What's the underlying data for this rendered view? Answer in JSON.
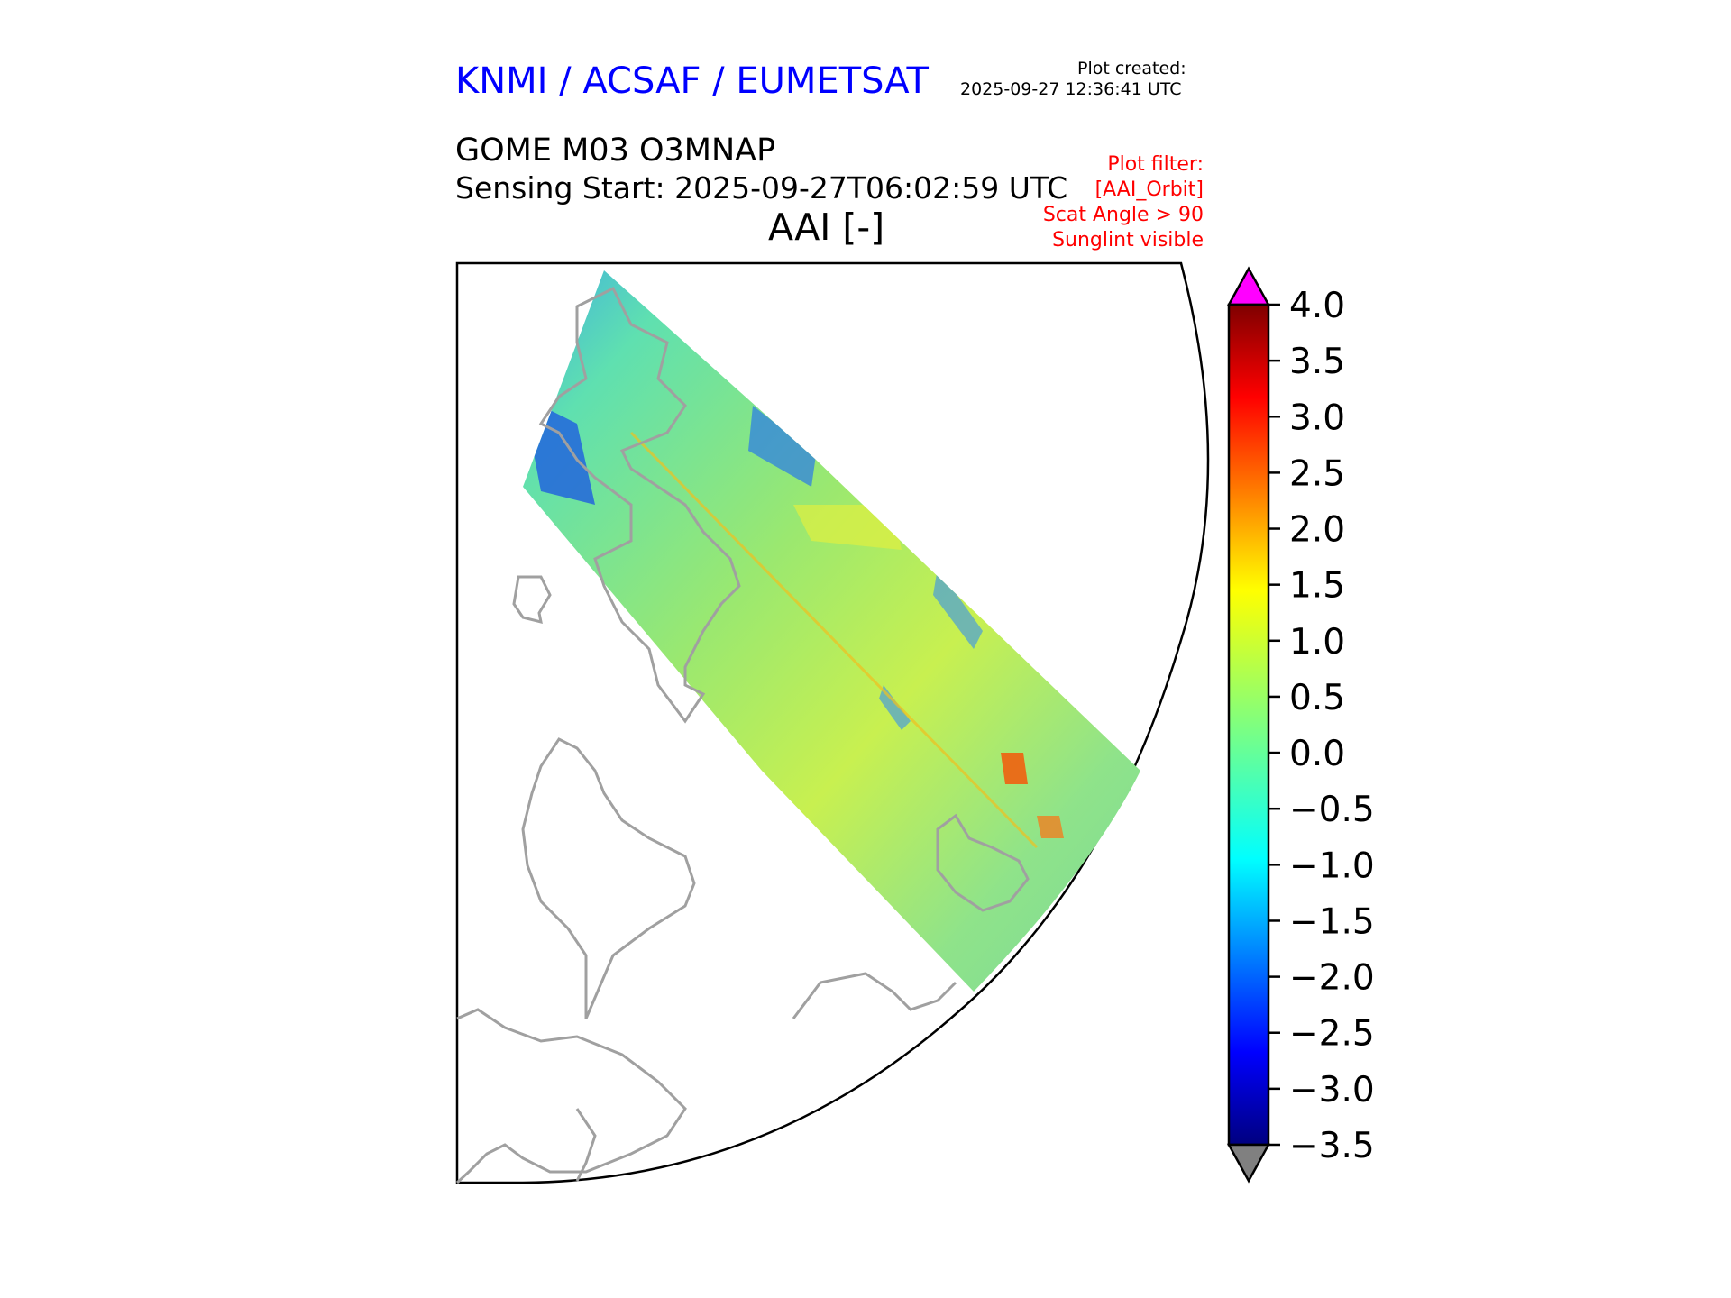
{
  "header": {
    "brand": "KNMI / ACSAF / EUMETSAT",
    "plot_created_label": "Plot created:",
    "plot_created_time": "2025-09-27 12:36:41 UTC",
    "product": "GOME M03 O3MNAP",
    "sensing_start": "Sensing Start: 2025-09-27T06:02:59 UTC",
    "variable_title": "AAI [-]"
  },
  "filter": {
    "label": "Plot filter:",
    "name": "[AAI_Orbit]",
    "scat_angle": "Scat Angle > 90",
    "sunglint": "Sunglint visible"
  },
  "colorbar": {
    "ticks": [
      "4.0",
      "3.5",
      "3.0",
      "2.5",
      "2.0",
      "1.5",
      "1.0",
      "0.5",
      "0.0",
      "−0.5",
      "−1.0",
      "−1.5",
      "−2.0",
      "−2.5",
      "−3.0",
      "−3.5"
    ],
    "over_color": "#ff00ff",
    "under_color": "#808080",
    "colormap": "jet"
  },
  "map": {
    "coastline_color": "#a0a0a0",
    "swath_base_color": "#7fe08a"
  }
}
